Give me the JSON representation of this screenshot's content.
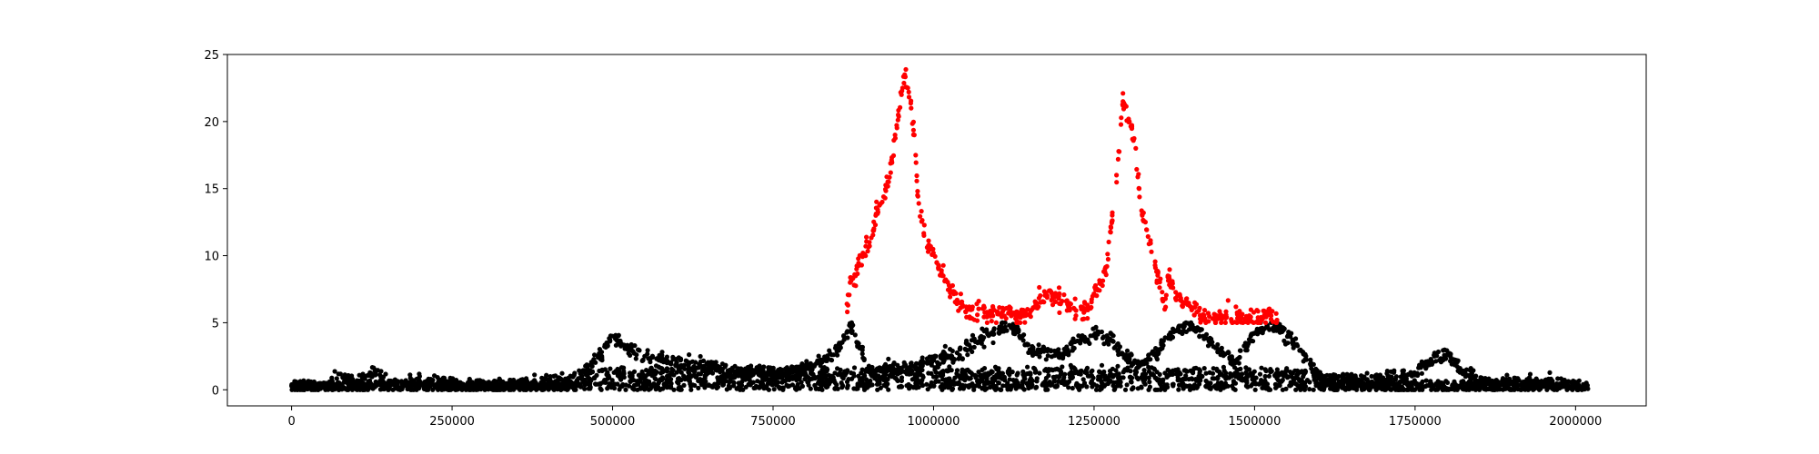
{
  "chart_data": {
    "type": "scatter",
    "title": "",
    "xlabel": "",
    "ylabel": "",
    "xlim": [
      -100000,
      2110000
    ],
    "ylim": [
      -1.2,
      25
    ],
    "x_ticks": [
      0,
      250000,
      500000,
      750000,
      1000000,
      1250000,
      1500000,
      1750000,
      2000000
    ],
    "x_tick_labels": [
      "0",
      "250000",
      "500000",
      "750000",
      "1000000",
      "1250000",
      "1500000",
      "1750000",
      "2000000"
    ],
    "y_ticks": [
      0,
      5,
      10,
      15,
      20,
      25
    ],
    "y_tick_labels": [
      "0",
      "5",
      "10",
      "15",
      "20",
      "25"
    ],
    "grid": false,
    "legend": false,
    "colors": {
      "below_threshold": "#000000",
      "above_threshold": "#ff0000"
    },
    "threshold": 5,
    "series": [
      {
        "color": "#000000",
        "points": [
          [
            0,
            0.3
          ],
          [
            30000,
            0.3
          ],
          [
            50000,
            0.25
          ],
          [
            80000,
            0.9
          ],
          [
            100000,
            0.5
          ],
          [
            130000,
            1.4
          ],
          [
            150000,
            0.4
          ],
          [
            200000,
            0.6
          ],
          [
            250000,
            0.5
          ],
          [
            300000,
            0.3
          ],
          [
            350000,
            0.3
          ],
          [
            400000,
            0.5
          ],
          [
            450000,
            1.2
          ],
          [
            480000,
            2.5
          ],
          [
            490000,
            3.3
          ],
          [
            500000,
            4.0
          ],
          [
            520000,
            3.2
          ],
          [
            550000,
            2.5
          ],
          [
            600000,
            2.0
          ],
          [
            650000,
            1.8
          ],
          [
            700000,
            1.3
          ],
          [
            750000,
            1.2
          ],
          [
            800000,
            1.6
          ],
          [
            830000,
            2.2
          ],
          [
            850000,
            3.0
          ],
          [
            860000,
            4.0
          ],
          [
            870000,
            4.8
          ],
          [
            900000,
            1.5
          ],
          [
            950000,
            1.5
          ],
          [
            1000000,
            2.2
          ],
          [
            1050000,
            3.0
          ],
          [
            1070000,
            3.6
          ],
          [
            1090000,
            4.2
          ],
          [
            1110000,
            4.6
          ],
          [
            1130000,
            4.5
          ],
          [
            1150000,
            3.0
          ],
          [
            1200000,
            2.6
          ],
          [
            1230000,
            3.8
          ],
          [
            1250000,
            4.1
          ],
          [
            1280000,
            3.6
          ],
          [
            1300000,
            2.5
          ],
          [
            1320000,
            1.8
          ],
          [
            1350000,
            3.0
          ],
          [
            1380000,
            4.5
          ],
          [
            1400000,
            4.8
          ],
          [
            1420000,
            4.0
          ],
          [
            1450000,
            2.8
          ],
          [
            1470000,
            2.0
          ],
          [
            1500000,
            4.2
          ],
          [
            1520000,
            4.8
          ],
          [
            1540000,
            4.6
          ],
          [
            1560000,
            3.6
          ],
          [
            1580000,
            2.5
          ],
          [
            1600000,
            0.9
          ],
          [
            1650000,
            0.8
          ],
          [
            1700000,
            0.9
          ],
          [
            1750000,
            1.1
          ],
          [
            1780000,
            2.5
          ],
          [
            1800000,
            2.6
          ],
          [
            1820000,
            1.6
          ],
          [
            1850000,
            0.6
          ],
          [
            1900000,
            0.6
          ],
          [
            1950000,
            0.5
          ],
          [
            2000000,
            0.4
          ]
        ]
      },
      {
        "color": "#ff0000",
        "points": [
          [
            865000,
            6.4
          ],
          [
            870000,
            8.0
          ],
          [
            880000,
            9.0
          ],
          [
            890000,
            10.2
          ],
          [
            900000,
            11.0
          ],
          [
            910000,
            13.0
          ],
          [
            920000,
            14.0
          ],
          [
            930000,
            15.5
          ],
          [
            935000,
            17.0
          ],
          [
            940000,
            19.0
          ],
          [
            945000,
            20.5
          ],
          [
            950000,
            22.0
          ],
          [
            955000,
            23.5
          ],
          [
            960000,
            22.5
          ],
          [
            965000,
            21.0
          ],
          [
            970000,
            19.0
          ],
          [
            975000,
            14.5
          ],
          [
            985000,
            11.5
          ],
          [
            995000,
            10.5
          ],
          [
            1005000,
            9.5
          ],
          [
            1015000,
            8.5
          ],
          [
            1025000,
            7.5
          ],
          [
            1040000,
            6.5
          ],
          [
            1050000,
            5.8
          ],
          [
            1140000,
            5.5
          ],
          [
            1160000,
            6.5
          ],
          [
            1175000,
            7.2
          ],
          [
            1185000,
            7.0
          ],
          [
            1195000,
            6.8
          ],
          [
            1210000,
            6.2
          ],
          [
            1240000,
            6.0
          ],
          [
            1255000,
            7.5
          ],
          [
            1270000,
            9.2
          ],
          [
            1285000,
            16.0
          ],
          [
            1295000,
            21.5
          ],
          [
            1305000,
            20.0
          ],
          [
            1315000,
            18.0
          ],
          [
            1320000,
            15.0
          ],
          [
            1325000,
            13.0
          ],
          [
            1330000,
            12.5
          ],
          [
            1360000,
            6.0
          ],
          [
            1365000,
            8.5
          ],
          [
            1380000,
            7.0
          ],
          [
            1395000,
            6.5
          ],
          [
            1410000,
            5.8
          ],
          [
            1420000,
            5.3
          ],
          [
            1510000,
            5.4
          ],
          [
            1525000,
            5.6
          ],
          [
            1535000,
            5.2
          ]
        ]
      }
    ]
  }
}
